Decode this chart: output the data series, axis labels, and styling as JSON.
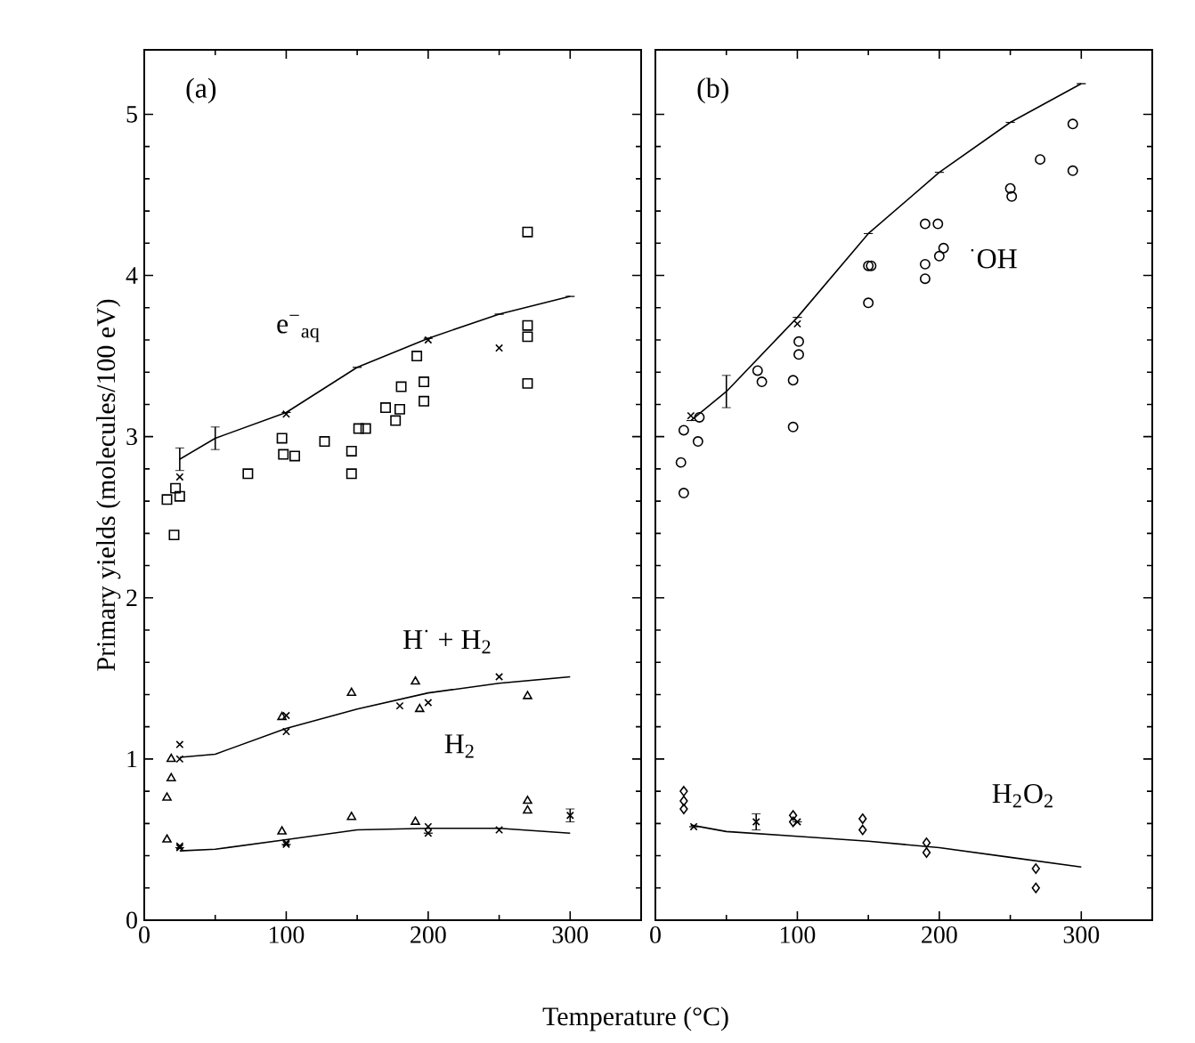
{
  "chart_data": [
    {
      "type": "scatter",
      "ylabel": "Primary yields (molecules/100 eV)",
      "xlabel": "Temperature (°C)",
      "xlim": [
        0,
        350
      ],
      "ylim": [
        0,
        5.4
      ],
      "xticks": [
        0,
        100,
        200,
        300
      ],
      "yticks": [
        0,
        1,
        2,
        3,
        4,
        5
      ],
      "line_style": "solid",
      "annotations": [
        "(a)",
        "e$^{−}$$_{aq}$",
        "H$^{·}$ + H$_{2}$",
        "H$_{2}$"
      ],
      "series": [
        {
          "type": "line",
          "marker": "none",
          "color": "#000000",
          "x": [
            25,
            50,
            100,
            150,
            200,
            250,
            300
          ],
          "values": [
            2.86,
            2.99,
            3.15,
            3.43,
            3.61,
            3.76,
            3.87
          ],
          "errors": [
            0.07,
            0.07,
            null,
            null,
            null,
            null,
            null
          ]
        },
        {
          "marker": "cross",
          "color": "#000000",
          "x": [
            25,
            100,
            200,
            250
          ],
          "values": [
            2.75,
            3.14,
            3.6,
            3.55
          ]
        },
        {
          "marker": "square",
          "color": "#000000",
          "x": [
            16,
            21,
            97,
            146,
            146,
            192,
            180,
            270,
            270,
            270,
            270
          ],
          "values": [
            2.61,
            2.39,
            2.99,
            2.91,
            2.77,
            3.5,
            3.17,
            4.27,
            3.69,
            3.62,
            3.33
          ]
        },
        {
          "marker": "square",
          "color": "#000000",
          "x": [
            22,
            25,
            73,
            98,
            106,
            127,
            151,
            156,
            170,
            177,
            181,
            197,
            197
          ],
          "values": [
            2.68,
            2.63,
            2.77,
            2.89,
            2.88,
            2.97,
            3.05,
            3.05,
            3.18,
            3.1,
            3.31,
            3.34,
            3.22
          ]
        },
        {
          "type": "line",
          "marker": "none",
          "color": "#000000",
          "x": [
            25,
            50,
            100,
            150,
            200,
            250,
            300
          ],
          "values": [
            1.01,
            1.03,
            1.19,
            1.31,
            1.41,
            1.47,
            1.51
          ]
        },
        {
          "marker": "cross",
          "color": "#000000",
          "x": [
            25,
            100,
            250
          ],
          "values": [
            1.09,
            1.27,
            1.51
          ]
        },
        {
          "marker": "triangle",
          "color": "#000000",
          "x": [
            19,
            19,
            16,
            97,
            146,
            191,
            194,
            270
          ],
          "values": [
            1.0,
            0.88,
            0.76,
            1.26,
            1.41,
            1.48,
            1.31,
            1.39
          ]
        },
        {
          "marker": "cross",
          "color": "#000000",
          "x": [
            25,
            100,
            180,
            200
          ],
          "values": [
            1.0,
            1.17,
            1.33,
            1.35
          ]
        },
        {
          "type": "line",
          "marker": "none",
          "color": "#000000",
          "x": [
            25,
            50,
            100,
            150,
            200,
            250,
            300
          ],
          "values": [
            0.43,
            0.44,
            0.5,
            0.56,
            0.57,
            0.57,
            0.54
          ]
        },
        {
          "marker": "cross",
          "color": "#000000",
          "x": [
            25,
            100,
            200,
            250
          ],
          "values": [
            0.46,
            0.48,
            0.58,
            0.56
          ]
        },
        {
          "marker": "triangle",
          "color": "#000000",
          "x": [
            16,
            97,
            146,
            191,
            270,
            270
          ],
          "values": [
            0.5,
            0.55,
            0.64,
            0.61,
            0.74,
            0.68
          ]
        },
        {
          "marker": "cross",
          "color": "#000000",
          "x": [
            25,
            100,
            200,
            300
          ],
          "values": [
            0.45,
            0.47,
            0.54,
            0.65
          ],
          "errors": [
            null,
            null,
            null,
            0.04
          ]
        }
      ]
    },
    {
      "type": "scatter",
      "xlim": [
        0,
        350
      ],
      "ylim": [
        0,
        5.4
      ],
      "xticks": [
        0,
        100,
        200,
        300
      ],
      "yticks": [
        0,
        1,
        2,
        3,
        4,
        5
      ],
      "tick_labels": "x",
      "line_style": "solid",
      "annotations": [
        "(b)",
        "$^{·}$OH",
        "H$_{2}$O$_{2}$"
      ],
      "series": [
        {
          "type": "line",
          "marker": "none",
          "color": "#000000",
          "x": [
            25,
            50,
            100,
            150,
            200,
            250,
            300
          ],
          "values": [
            3.1,
            3.28,
            3.74,
            4.26,
            4.64,
            4.95,
            5.19
          ],
          "errors": [
            null,
            0.1,
            null,
            null,
            null,
            null,
            null
          ]
        },
        {
          "marker": "cross",
          "color": "#000000",
          "x": [
            25,
            100
          ],
          "values": [
            3.13,
            3.7
          ]
        },
        {
          "marker": "circle",
          "color": "#000000",
          "x": [
            20,
            20,
            97,
            97,
            190,
            190,
            190,
            200
          ],
          "values": [
            3.04,
            2.65,
            3.35,
            3.06,
            4.32,
            4.07,
            3.98,
            4.12
          ]
        },
        {
          "marker": "circle",
          "color": "#000000",
          "x": [
            18,
            30,
            31,
            72,
            75,
            101,
            101,
            150,
            152,
            150,
            199,
            203,
            250,
            251,
            271,
            294,
            294
          ],
          "values": [
            2.84,
            2.97,
            3.12,
            3.41,
            3.34,
            3.59,
            3.51,
            4.06,
            4.06,
            3.83,
            4.32,
            4.17,
            4.54,
            4.49,
            4.72,
            4.94,
            4.65
          ]
        },
        {
          "type": "line",
          "marker": "none",
          "color": "#000000",
          "x": [
            25,
            50,
            100,
            150,
            200,
            250,
            300
          ],
          "values": [
            0.59,
            0.55,
            0.52,
            0.49,
            0.45,
            0.39,
            0.33
          ]
        },
        {
          "marker": "diamond",
          "color": "#000000",
          "x": [
            20,
            20,
            20,
            97,
            97,
            146,
            146,
            191,
            191,
            268,
            268
          ],
          "values": [
            0.8,
            0.74,
            0.69,
            0.65,
            0.61,
            0.63,
            0.56,
            0.48,
            0.42,
            0.32,
            0.2
          ]
        },
        {
          "marker": "cross",
          "color": "#000000",
          "x": [
            27,
            71,
            100
          ],
          "values": [
            0.58,
            0.61,
            0.61
          ],
          "errors": [
            null,
            0.05,
            null
          ]
        }
      ]
    }
  ]
}
